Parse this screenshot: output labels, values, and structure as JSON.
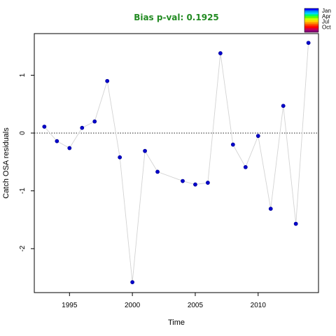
{
  "chart_data": {
    "type": "scatter",
    "title": "Bias p-val: 0.1925",
    "title_color": "#228b22",
    "xlabel": "Time",
    "ylabel": "Catch OSA residuals",
    "xlim": [
      1992.2,
      2014.8
    ],
    "ylim": [
      -2.76,
      1.72
    ],
    "x_ticks": [
      1995,
      2000,
      2005,
      2010
    ],
    "y_ticks": [
      -2,
      -1,
      0,
      1
    ],
    "reference_line": 0,
    "grid": false,
    "point_color": "#0000cd",
    "line_color": "#d3d3d3",
    "points": [
      {
        "x": 1993,
        "y": 0.11
      },
      {
        "x": 1994,
        "y": -0.14
      },
      {
        "x": 1995,
        "y": -0.26
      },
      {
        "x": 1996,
        "y": 0.09
      },
      {
        "x": 1997,
        "y": 0.2
      },
      {
        "x": 1998,
        "y": 0.9
      },
      {
        "x": 1999,
        "y": -0.42
      },
      {
        "x": 2000,
        "y": -2.58
      },
      {
        "x": 2001,
        "y": -0.31
      },
      {
        "x": 2002,
        "y": -0.67
      },
      {
        "x": 2004,
        "y": -0.83
      },
      {
        "x": 2005,
        "y": -0.89
      },
      {
        "x": 2006,
        "y": -0.86
      },
      {
        "x": 2007,
        "y": 1.38
      },
      {
        "x": 2008,
        "y": -0.2
      },
      {
        "x": 2009,
        "y": -0.59
      },
      {
        "x": 2010,
        "y": -0.05
      },
      {
        "x": 2011,
        "y": -1.31
      },
      {
        "x": 2012,
        "y": 0.47
      },
      {
        "x": 2013,
        "y": -1.57
      },
      {
        "x": 2014,
        "y": 1.56
      }
    ],
    "legend": {
      "placement": "top-right",
      "labels": [
        "Jan",
        "Apr",
        "Jul",
        "Oct"
      ],
      "colors": [
        "#0000ff",
        "#008cff",
        "#00d2ff",
        "#00ff64",
        "#64ff00",
        "#d2ff00",
        "#ffd200",
        "#ff8c00",
        "#ff3c00",
        "#ff0000",
        "#c80050",
        "#8c0078"
      ]
    }
  }
}
